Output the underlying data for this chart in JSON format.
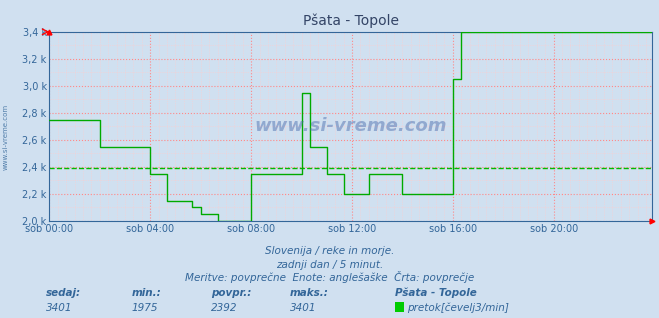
{
  "title": "Pšata - Topole",
  "bg_color": "#d0e0f0",
  "plot_bg_color": "#d0e0f0",
  "line_color": "#00aa00",
  "avg_line_color": "#00bb00",
  "grid_color_major": "#ff8888",
  "grid_color_minor": "#ffcccc",
  "text_color": "#336699",
  "title_color": "#334466",
  "ymin": 2000,
  "ymax": 3400,
  "yticks": [
    2000,
    2200,
    2400,
    2600,
    2800,
    3000,
    3200,
    3400
  ],
  "ytick_labels": [
    "2,0 k",
    "2,2 k",
    "2,4 k",
    "2,6 k",
    "2,8 k",
    "3,0 k",
    "3,2 k",
    "3,4 k"
  ],
  "avg_value": 2392,
  "xtick_labels": [
    "sob 00:00",
    "sob 04:00",
    "sob 08:00",
    "sob 12:00",
    "sob 16:00",
    "sob 20:00"
  ],
  "num_points": 288,
  "footer_line1": "Slovenija / reke in morje.",
  "footer_line2": "zadnji dan / 5 minut.",
  "footer_line3": "Meritve: povprečne  Enote: anglešaške  Črta: povprečje",
  "stat_labels": [
    "sedaj:",
    "min.:",
    "povpr.:",
    "maks.:"
  ],
  "stat_values": [
    "3401",
    "1975",
    "2392",
    "3401"
  ],
  "legend_station": "Pšata - Topole",
  "legend_unit": "pretok[čevelj3/min]",
  "watermark": "www.si-vreme.com",
  "series_y": [
    2750,
    2750,
    2750,
    2750,
    2750,
    2750,
    2750,
    2750,
    2750,
    2750,
    2750,
    2750,
    2750,
    2750,
    2750,
    2750,
    2750,
    2750,
    2750,
    2750,
    2750,
    2750,
    2750,
    2750,
    2550,
    2550,
    2550,
    2550,
    2550,
    2550,
    2550,
    2550,
    2550,
    2550,
    2550,
    2550,
    2550,
    2550,
    2550,
    2550,
    2550,
    2550,
    2550,
    2550,
    2550,
    2550,
    2550,
    2550,
    2350,
    2350,
    2350,
    2350,
    2350,
    2350,
    2350,
    2350,
    2150,
    2150,
    2150,
    2150,
    2150,
    2150,
    2150,
    2150,
    2150,
    2150,
    2150,
    2150,
    2100,
    2100,
    2100,
    2100,
    2050,
    2050,
    2050,
    2050,
    2050,
    2050,
    2050,
    2050,
    2000,
    2000,
    2000,
    2000,
    2000,
    2000,
    2000,
    2000,
    2000,
    2000,
    2000,
    2000,
    2000,
    2000,
    2000,
    2000,
    2350,
    2350,
    2350,
    2350,
    2350,
    2350,
    2350,
    2350,
    2350,
    2350,
    2350,
    2350,
    2350,
    2350,
    2350,
    2350,
    2350,
    2350,
    2350,
    2350,
    2350,
    2350,
    2350,
    2350,
    2950,
    2950,
    2950,
    2950,
    2550,
    2550,
    2550,
    2550,
    2550,
    2550,
    2550,
    2550,
    2350,
    2350,
    2350,
    2350,
    2350,
    2350,
    2350,
    2350,
    2200,
    2200,
    2200,
    2200,
    2200,
    2200,
    2200,
    2200,
    2200,
    2200,
    2200,
    2200,
    2350,
    2350,
    2350,
    2350,
    2350,
    2350,
    2350,
    2350,
    2350,
    2350,
    2350,
    2350,
    2350,
    2350,
    2350,
    2350,
    2200,
    2200,
    2200,
    2200,
    2200,
    2200,
    2200,
    2200,
    2200,
    2200,
    2200,
    2200,
    2200,
    2200,
    2200,
    2200,
    2200,
    2200,
    2200,
    2200,
    2200,
    2200,
    2200,
    2200,
    3050,
    3050,
    3050,
    3050,
    3400,
    3400,
    3400,
    3400,
    3400,
    3400,
    3400,
    3400,
    3400,
    3400,
    3400,
    3400,
    3400,
    3400,
    3400,
    3400,
    3400,
    3400,
    3400,
    3400,
    3400,
    3400,
    3400,
    3400,
    3400,
    3400,
    3400,
    3400,
    3400,
    3400,
    3400,
    3400,
    3400,
    3400,
    3400,
    3400,
    3400,
    3400,
    3400,
    3400,
    3400,
    3400,
    3400,
    3400,
    3400,
    3400,
    3400,
    3400,
    3400,
    3400,
    3400,
    3400,
    3400,
    3400,
    3400,
    3400,
    3400,
    3400,
    3400,
    3400,
    3400,
    3400,
    3400,
    3400,
    3400,
    3400,
    3400,
    3400,
    3400,
    3400,
    3400,
    3400,
    3400,
    3400,
    3400,
    3400,
    3400,
    3400,
    3400,
    3400,
    3400,
    3400,
    3400,
    3400,
    3400,
    3400,
    3400,
    3400,
    3400,
    3400,
    3400,
    3401
  ]
}
